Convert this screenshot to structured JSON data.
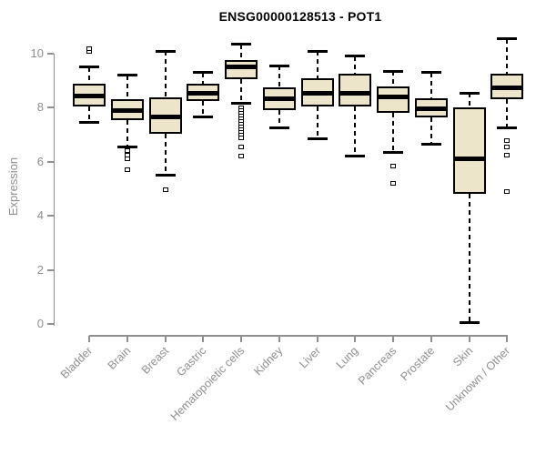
{
  "title": "ENSG00000128513 - POT1",
  "chart_data": {
    "type": "boxplot",
    "title": "ENSG00000128513 - POT1",
    "xlabel": "",
    "ylabel": "Expression",
    "ylim": [
      0,
      10
    ],
    "yticks": [
      0,
      2,
      4,
      6,
      8,
      10
    ],
    "grid": false,
    "legend": "none",
    "categories": [
      "Bladder",
      "Brain",
      "Breast",
      "Gastric",
      "Hematopoietic cells",
      "Kidney",
      "Liver",
      "Lung",
      "Pancreas",
      "Prostate",
      "Skin",
      "Unknown / Other"
    ],
    "series": [
      {
        "name": "Bladder",
        "whisker_low": 7.45,
        "q1": 8.05,
        "median": 8.45,
        "q3": 8.9,
        "whisker_high": 9.5,
        "outliers": [
          10.1,
          10.2
        ]
      },
      {
        "name": "Brain",
        "whisker_low": 6.55,
        "q1": 7.55,
        "median": 7.9,
        "q3": 8.3,
        "whisker_high": 9.2,
        "outliers": [
          6.4,
          6.25,
          6.1,
          5.7
        ]
      },
      {
        "name": "Breast",
        "whisker_low": 5.5,
        "q1": 7.05,
        "median": 7.65,
        "q3": 8.4,
        "whisker_high": 10.1,
        "outliers": [
          4.95
        ]
      },
      {
        "name": "Gastric",
        "whisker_low": 7.65,
        "q1": 8.25,
        "median": 8.55,
        "q3": 8.9,
        "whisker_high": 9.3,
        "outliers": []
      },
      {
        "name": "Hematopoietic cells",
        "whisker_low": 8.15,
        "q1": 9.05,
        "median": 9.5,
        "q3": 9.75,
        "whisker_high": 10.35,
        "outliers": [
          8.0,
          7.9,
          7.8,
          7.7,
          7.6,
          7.5,
          7.4,
          7.3,
          7.2,
          7.1,
          7.0,
          6.9,
          6.55,
          6.2
        ]
      },
      {
        "name": "Kidney",
        "whisker_low": 7.25,
        "q1": 7.9,
        "median": 8.35,
        "q3": 8.75,
        "whisker_high": 9.55,
        "outliers": []
      },
      {
        "name": "Liver",
        "whisker_low": 6.85,
        "q1": 8.05,
        "median": 8.55,
        "q3": 9.1,
        "whisker_high": 10.1,
        "outliers": []
      },
      {
        "name": "Lung",
        "whisker_low": 6.2,
        "q1": 8.05,
        "median": 8.55,
        "q3": 9.25,
        "whisker_high": 9.9,
        "outliers": []
      },
      {
        "name": "Pancreas",
        "whisker_low": 6.35,
        "q1": 7.8,
        "median": 8.4,
        "q3": 8.8,
        "whisker_high": 9.35,
        "outliers": [
          5.85,
          5.2
        ]
      },
      {
        "name": "Prostate",
        "whisker_low": 6.65,
        "q1": 7.65,
        "median": 7.95,
        "q3": 8.35,
        "whisker_high": 9.3,
        "outliers": []
      },
      {
        "name": "Skin",
        "whisker_low": 0.05,
        "q1": 4.8,
        "median": 6.1,
        "q3": 8.0,
        "whisker_high": 8.55,
        "outliers": []
      },
      {
        "name": "Unknown / Other",
        "whisker_low": 7.25,
        "q1": 8.3,
        "median": 8.75,
        "q3": 9.25,
        "whisker_high": 10.55,
        "outliers": [
          6.8,
          6.55,
          6.25,
          4.9
        ]
      }
    ],
    "colors": {
      "box_fill": "#ede5ca",
      "box_border": "#000000",
      "median": "#000000",
      "whisker": "#000000",
      "axis": "#8e8e8e",
      "tick_label": "#8e8e8e",
      "title": "#000000",
      "background": "#ffffff"
    }
  }
}
